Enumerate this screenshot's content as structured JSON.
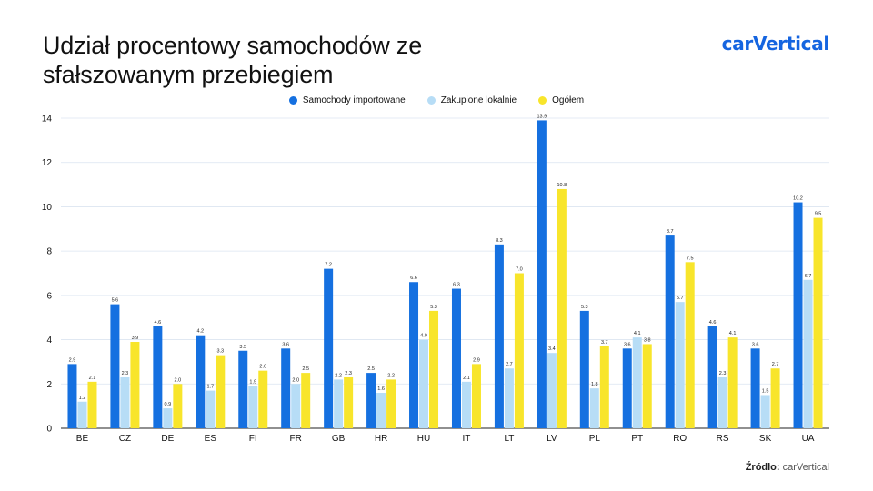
{
  "title": "Udział procentowy samochodów ze sfałszowanym przebiegiem",
  "logo": "carVertical",
  "source": {
    "label": "Źródło:",
    "text": "carVertical"
  },
  "colors": {
    "imported": "#1570e0",
    "local": "#b7ddf6",
    "overall": "#f8e52b",
    "grid": "#dbe4f0",
    "axis": "#222222"
  },
  "chart_data": {
    "type": "bar",
    "title": "Udział procentowy samochodów ze sfałszowanym przebiegiem",
    "xlabel": "",
    "ylabel": "",
    "ylim": [
      0,
      14
    ],
    "yticks": [
      0,
      2,
      4,
      6,
      8,
      10,
      12,
      14
    ],
    "grid": true,
    "legend": "top-center",
    "categories": [
      "BE",
      "CZ",
      "DE",
      "ES",
      "FI",
      "FR",
      "GB",
      "HR",
      "HU",
      "IT",
      "LT",
      "LV",
      "PL",
      "PT",
      "RO",
      "RS",
      "SK",
      "UA"
    ],
    "series": [
      {
        "name": "Samochody importowane",
        "color": "#1570e0",
        "values": [
          2.9,
          5.6,
          4.6,
          4.2,
          3.5,
          3.6,
          7.2,
          2.5,
          6.6,
          6.3,
          8.3,
          13.9,
          5.3,
          3.6,
          8.7,
          4.6,
          3.6,
          10.2
        ]
      },
      {
        "name": "Zakupione lokalnie",
        "color": "#b7ddf6",
        "values": [
          1.2,
          2.3,
          0.9,
          1.7,
          1.9,
          2.0,
          2.2,
          1.6,
          4.0,
          2.1,
          2.7,
          3.4,
          1.8,
          4.1,
          5.7,
          2.3,
          1.5,
          6.7
        ]
      },
      {
        "name": "Ogółem",
        "color": "#f8e52b",
        "values": [
          2.1,
          3.9,
          2.0,
          3.3,
          2.6,
          2.5,
          2.3,
          2.2,
          5.3,
          2.9,
          7.0,
          10.8,
          3.7,
          3.8,
          7.5,
          4.1,
          2.7,
          9.5
        ]
      }
    ]
  }
}
